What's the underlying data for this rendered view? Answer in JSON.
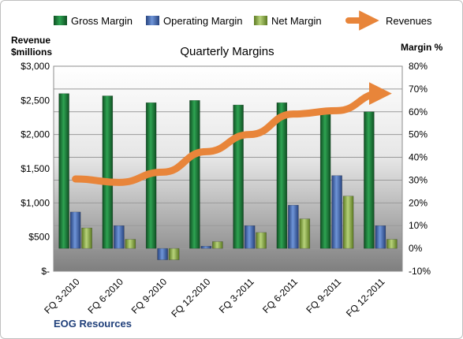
{
  "chart_data": {
    "type": "bar",
    "title": "Quarterly Margins",
    "footer": "EOG Resources",
    "categories": [
      "FQ 3-2010",
      "FQ 6-2010",
      "FQ 9-2010",
      "FQ 12-2010",
      "FQ 3-2011",
      "FQ 6-2011",
      "FQ 9-2011",
      "FQ 12-2011"
    ],
    "series": [
      {
        "name": "Gross Margin",
        "axis": "right",
        "kind": "bar",
        "color": "#1f7a3a",
        "values": [
          68,
          67,
          64,
          65,
          63,
          64,
          60,
          60
        ]
      },
      {
        "name": "Operating Margin",
        "axis": "right",
        "kind": "bar",
        "color": "#3f66b0",
        "values": [
          16,
          10,
          -5,
          1,
          10,
          19,
          32,
          10
        ]
      },
      {
        "name": "Net Margin",
        "axis": "right",
        "kind": "bar",
        "color": "#8fb14a",
        "values": [
          9,
          4,
          -5,
          3,
          7,
          13,
          23,
          4
        ]
      },
      {
        "name": "Revenues",
        "axis": "left",
        "kind": "line",
        "color": "#e8853a",
        "values": [
          1350,
          1300,
          1450,
          1750,
          2000,
          2300,
          2350,
          2600
        ]
      }
    ],
    "y_left": {
      "label_line1": "Revenue",
      "label_line2": "$millions",
      "range": [
        0,
        3000
      ],
      "ticks": [
        "$-",
        "$500",
        "$1,000",
        "$1,500",
        "$2,000",
        "$2,500",
        "$3,000"
      ],
      "tick_values": [
        0,
        500,
        1000,
        1500,
        2000,
        2500,
        3000
      ]
    },
    "y_right": {
      "label": "Margin %",
      "range": [
        -10,
        80
      ],
      "ticks": [
        "-10%",
        "0%",
        "10%",
        "20%",
        "30%",
        "40%",
        "50%",
        "60%",
        "70%",
        "80%"
      ],
      "tick_values": [
        -10,
        0,
        10,
        20,
        30,
        40,
        50,
        60,
        70,
        80
      ]
    },
    "grid": true,
    "legend_position": "top"
  }
}
